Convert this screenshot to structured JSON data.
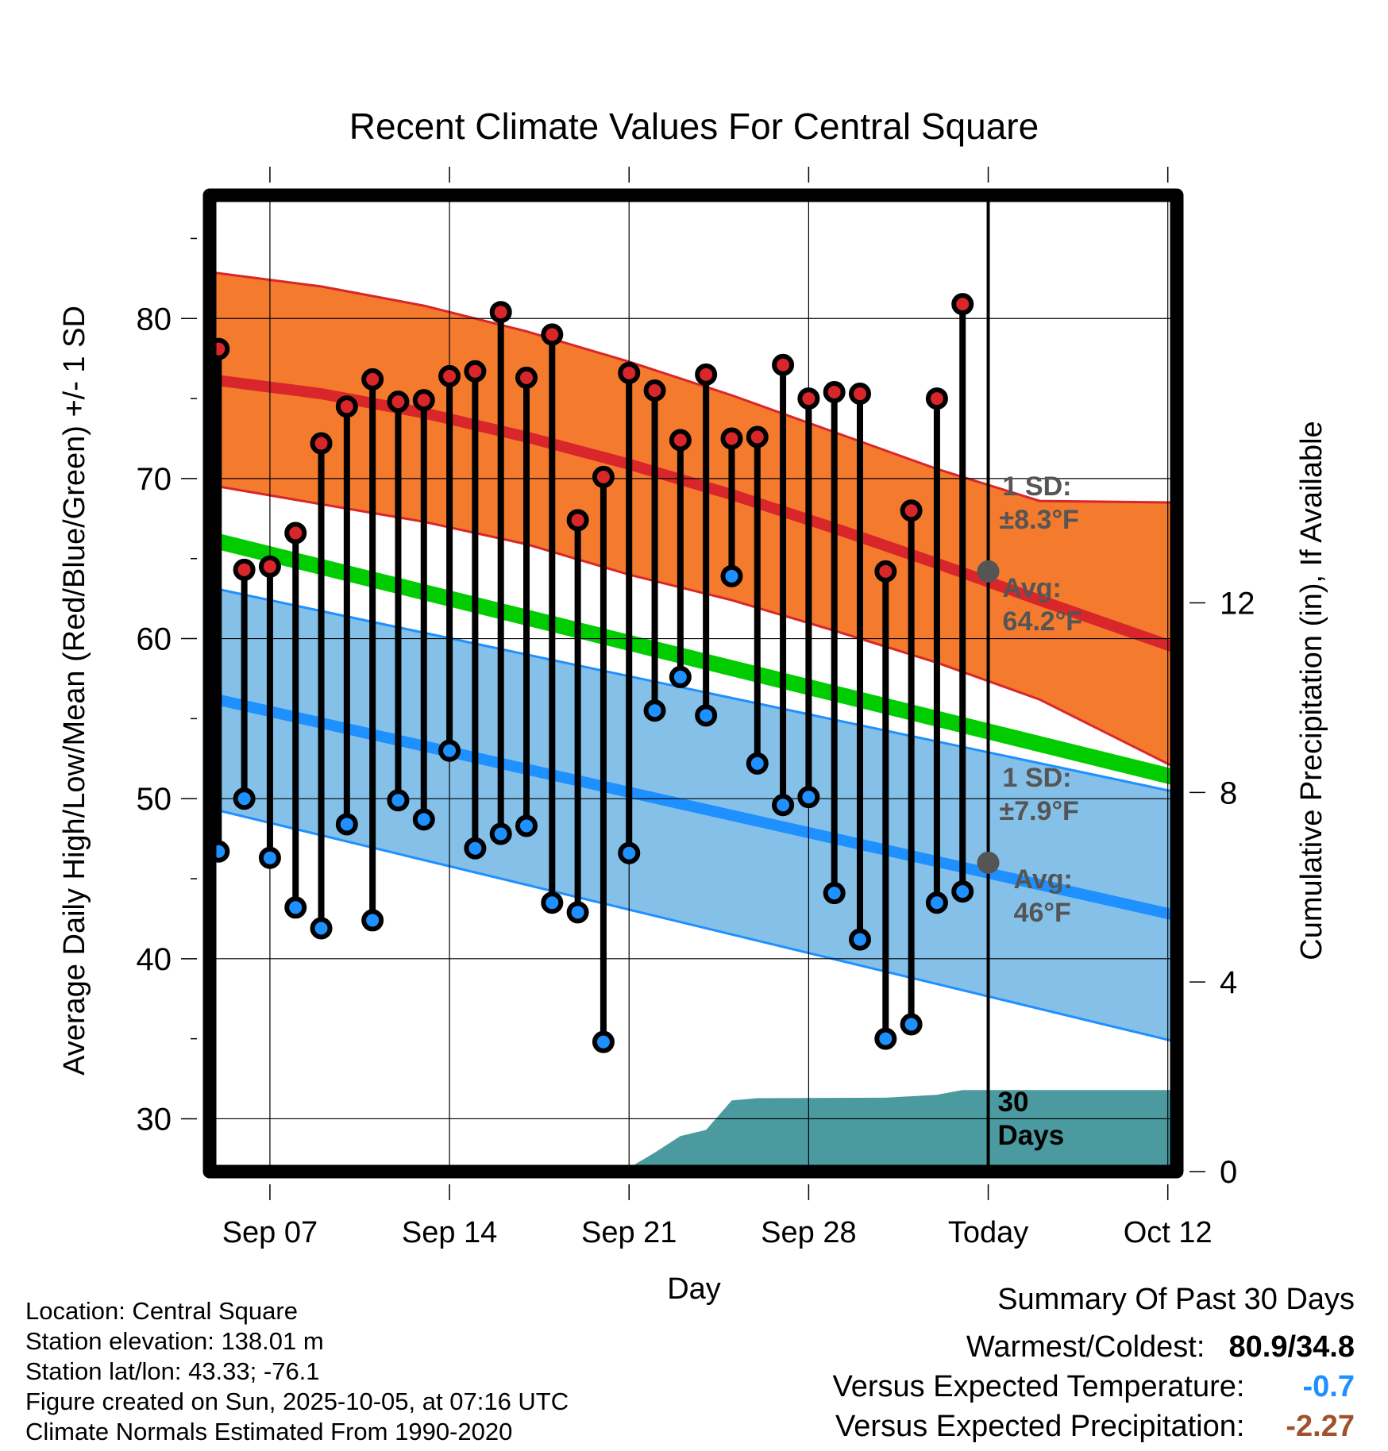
{
  "chart_data": {
    "type": "line",
    "title": "Recent Climate Values For Central Square",
    "xlabel": "Day",
    "ylabel": "Average Daily High/Low/Mean (Red/Blue/Green) +/- 1 SD",
    "y2label": "Cumulative Precipitation (in), If Available",
    "ylim": [
      26.7,
      87.7
    ],
    "yticks": [
      30,
      40,
      50,
      60,
      70,
      80
    ],
    "y2lim": [
      0,
      20.6
    ],
    "y2ticks": [
      0,
      4,
      8,
      12
    ],
    "xlim": [
      -0.35,
      37.35
    ],
    "xtick_positions": [
      2,
      9,
      16,
      23,
      30,
      37
    ],
    "xtick_labels": [
      "Sep 07",
      "Sep 14",
      "Sep 21",
      "Sep 28",
      "Today",
      "Oct 12"
    ],
    "today_index": 30,
    "colors": {
      "high_band": "#f47a2e",
      "high_line": "#d9262a",
      "low_band": "#84c0e8",
      "low_line": "#1e90ff",
      "mean_line": "#00cc00",
      "precip": "#4a9aa0",
      "today_marker": "#555555",
      "versus_temp": "#1e90ff",
      "versus_precip": "#a0522d"
    },
    "normal_high": {
      "x": [
        -0.35,
        4,
        8,
        12,
        16,
        20,
        24,
        28,
        32,
        37.35
      ],
      "mean": [
        76.2,
        75.3,
        74.1,
        72.6,
        70.9,
        69.0,
        66.9,
        64.7,
        62.4,
        59.4
      ],
      "upper": [
        82.9,
        82.0,
        80.8,
        79.2,
        77.3,
        75.2,
        72.9,
        70.6,
        68.6,
        68.5
      ],
      "lower": [
        69.6,
        68.4,
        67.3,
        65.9,
        64.0,
        62.4,
        60.5,
        58.5,
        56.2,
        51.9
      ]
    },
    "normal_mean": {
      "x": [
        -0.35,
        37.35
      ],
      "values": [
        66.2,
        51.3
      ]
    },
    "normal_low": {
      "x": [
        -0.35,
        37.35
      ],
      "mean": [
        56.3,
        42.7
      ],
      "upper": [
        63.2,
        50.4
      ],
      "lower": [
        49.4,
        34.8
      ]
    },
    "daily_x": [
      0,
      1,
      2,
      3,
      4,
      5,
      6,
      7,
      8,
      9,
      10,
      11,
      12,
      13,
      14,
      15,
      16,
      17,
      18,
      19,
      20,
      21,
      22,
      23,
      24,
      25,
      26,
      27,
      28,
      29
    ],
    "daily_high": [
      78.1,
      64.3,
      64.5,
      66.6,
      72.2,
      74.5,
      76.2,
      74.8,
      74.9,
      76.4,
      76.7,
      80.4,
      76.3,
      79.0,
      67.4,
      70.1,
      76.6,
      75.5,
      72.4,
      76.5,
      72.5,
      72.6,
      77.1,
      75.0,
      75.4,
      75.3,
      64.2,
      68.0,
      75.0,
      80.9
    ],
    "daily_low": [
      46.7,
      50.0,
      46.3,
      43.2,
      41.9,
      48.4,
      42.4,
      49.9,
      48.7,
      53.0,
      46.9,
      47.8,
      48.3,
      43.5,
      42.9,
      34.8,
      46.6,
      55.5,
      57.6,
      55.2,
      63.9,
      52.2,
      49.6,
      50.1,
      44.1,
      41.2,
      35.0,
      35.9,
      43.5,
      44.2
    ],
    "precip_x": [
      -0.35,
      1.2,
      16,
      17,
      18,
      19,
      20,
      21,
      26,
      28,
      29,
      37.35
    ],
    "precip_cum": [
      0,
      0.08,
      0.08,
      0.4,
      0.75,
      0.88,
      1.5,
      1.55,
      1.56,
      1.62,
      1.72,
      1.72
    ],
    "annotations": {
      "high_sd_label": "1 SD:",
      "high_sd_value": "±8.3°F",
      "high_avg_label": "Avg:",
      "high_avg_value": "64.2°F",
      "high_avg": 64.2,
      "low_sd_label": "1 SD:",
      "low_sd_value": "±7.9°F",
      "low_avg_label": "Avg:",
      "low_avg_value": "46°F",
      "low_avg": 46.0,
      "window_count": "30",
      "window_unit": "Days"
    }
  },
  "station": {
    "location": "Location: Central Square",
    "elevation": "Station elevation: 138.01 m",
    "latlon": "Station lat/lon: 43.33; -76.1",
    "created": "Figure created on Sun, 2025-10-05, at 07:16 UTC",
    "normals": "Climate Normals Estimated From 1990-2020"
  },
  "summary": {
    "title": "Summary Of Past 30 Days",
    "warmest_coldest_label": "Warmest/Coldest:",
    "warmest_coldest_value": "80.9/34.8",
    "versus_temp_label": "Versus Expected Temperature:",
    "versus_temp_value": "-0.7",
    "versus_precip_label": "Versus Expected Precipitation:",
    "versus_precip_value": "-2.27"
  }
}
